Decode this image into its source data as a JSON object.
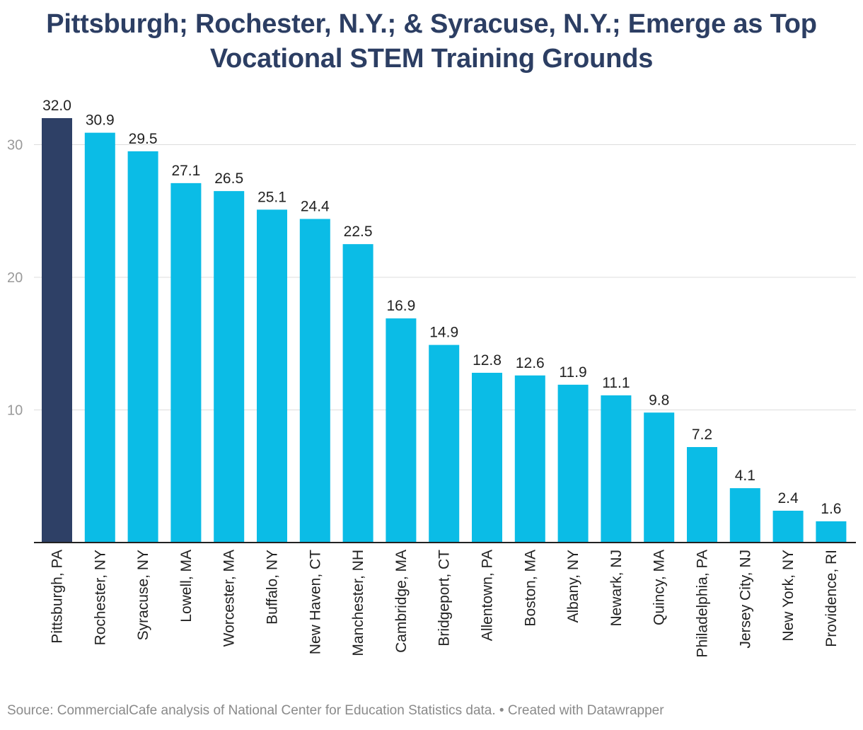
{
  "chart_data": {
    "type": "bar",
    "title_lines": [
      "Pittsburgh; Rochester, N.Y.; & Syracuse, N.Y.; Emerge as Top",
      "Vocational STEM Training Grounds"
    ],
    "categories": [
      "Pittsburgh, PA",
      "Rochester, NY",
      "Syracuse, NY",
      "Lowell, MA",
      "Worcester, MA",
      "Buffalo, NY",
      "New Haven, CT",
      "Manchester, NH",
      "Cambridge, MA",
      "Bridgeport, CT",
      "Allentown, PA",
      "Boston, MA",
      "Albany, NY",
      "Newark, NJ",
      "Quincy, MA",
      "Philadelphia, PA",
      "Jersey City, NJ",
      "New York, NY",
      "Providence, RI"
    ],
    "values": [
      32.0,
      30.9,
      29.5,
      27.1,
      26.5,
      25.1,
      24.4,
      22.5,
      16.9,
      14.9,
      12.8,
      12.6,
      11.9,
      11.1,
      9.8,
      7.2,
      4.1,
      2.4,
      1.6
    ],
    "value_labels": [
      "32.0",
      "30.9",
      "29.5",
      "27.1",
      "26.5",
      "25.1",
      "24.4",
      "22.5",
      "16.9",
      "14.9",
      "12.8",
      "12.6",
      "11.9",
      "11.1",
      "9.8",
      "7.2",
      "4.1",
      "2.4",
      "1.6"
    ],
    "highlight_index": 0,
    "yticks": [
      10,
      20,
      30
    ],
    "ylim": [
      0,
      33
    ],
    "xlabel": "",
    "ylabel": "",
    "grid": true,
    "colors": {
      "highlight": "#2e4066",
      "bar": "#0bbce6",
      "grid": "#dddddd",
      "axis": "#222222",
      "tick_label": "#9a9a9a",
      "value_label": "#222222",
      "category_label": "#222222",
      "title": "#2c3e63"
    }
  },
  "footer": {
    "source": "Source: CommercialCafe analysis of National Center for Education Statistics data. • Created with Datawrapper"
  }
}
